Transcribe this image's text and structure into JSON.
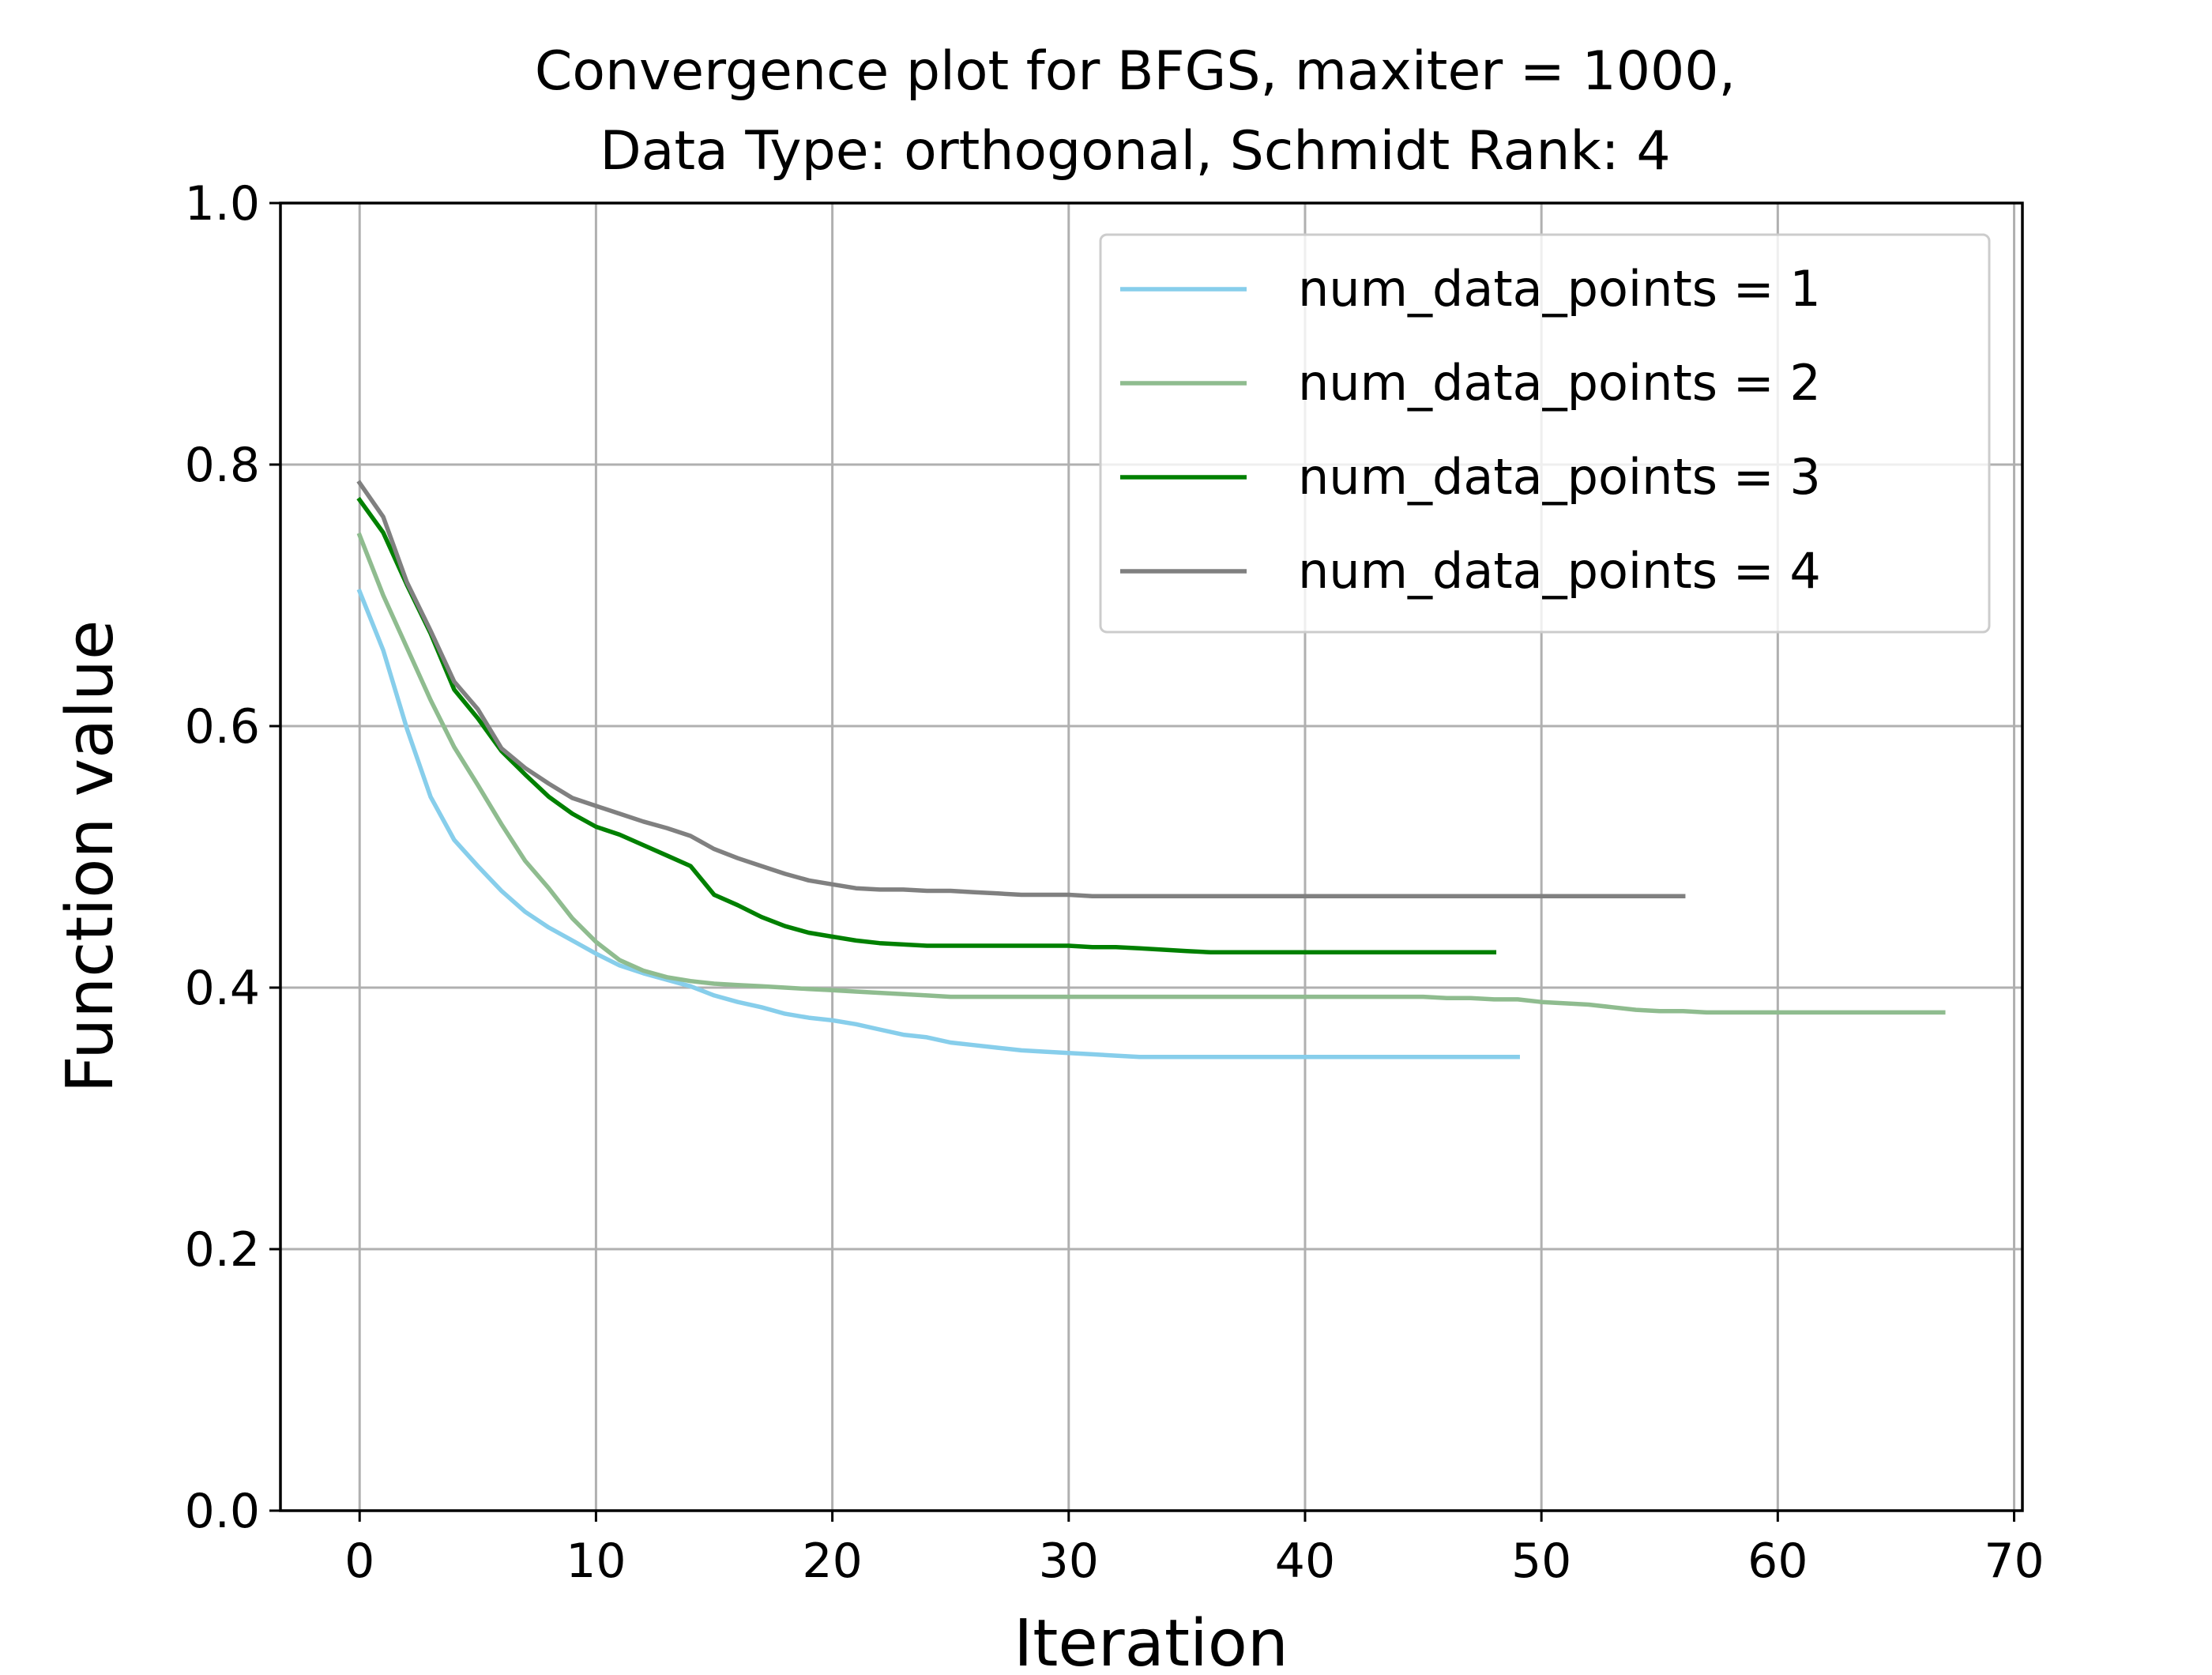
{
  "chart_data": {
    "type": "line",
    "title": [
      "Convergence plot for BFGS, maxiter = 1000,",
      "Data Type: orthogonal, Schmidt Rank: 4"
    ],
    "xlabel": "Iteration",
    "ylabel": "Function value",
    "xlim": [
      -3.35,
      70.35
    ],
    "ylim": [
      0.0,
      1.0
    ],
    "xticks": [
      0,
      10,
      20,
      30,
      40,
      50,
      60,
      70
    ],
    "yticks": [
      0.0,
      0.2,
      0.4,
      0.6,
      0.8,
      1.0
    ],
    "xtick_labels": [
      "0",
      "10",
      "20",
      "30",
      "40",
      "50",
      "60",
      "70"
    ],
    "ytick_labels": [
      "0.0",
      "0.2",
      "0.4",
      "0.6",
      "0.8",
      "1.0"
    ],
    "grid": true,
    "legend_position": "top-right",
    "series": [
      {
        "name": "num_data_points = 1",
        "color": "#87CEEB",
        "x": [
          0,
          1,
          2,
          3,
          4,
          5,
          6,
          7,
          8,
          9,
          10,
          11,
          12,
          13,
          14,
          15,
          16,
          17,
          18,
          19,
          20,
          21,
          22,
          23,
          24,
          25,
          26,
          27,
          28,
          29,
          30,
          31,
          32,
          33,
          34,
          35,
          36,
          37,
          38,
          39,
          40,
          41,
          42,
          43,
          44,
          45,
          46,
          47,
          48,
          49
        ],
        "values": [
          0.703,
          0.658,
          0.598,
          0.546,
          0.513,
          0.493,
          0.474,
          0.458,
          0.446,
          0.436,
          0.426,
          0.417,
          0.411,
          0.406,
          0.401,
          0.394,
          0.389,
          0.385,
          0.38,
          0.377,
          0.375,
          0.372,
          0.368,
          0.364,
          0.362,
          0.358,
          0.356,
          0.354,
          0.352,
          0.351,
          0.35,
          0.349,
          0.348,
          0.347,
          0.347,
          0.347,
          0.347,
          0.347,
          0.347,
          0.347,
          0.347,
          0.347,
          0.347,
          0.347,
          0.347,
          0.347,
          0.347,
          0.347,
          0.347,
          0.347
        ]
      },
      {
        "name": "num_data_points = 2",
        "color": "#8FBC8F",
        "x": [
          0,
          1,
          2,
          3,
          4,
          5,
          6,
          7,
          8,
          9,
          10,
          11,
          12,
          13,
          14,
          15,
          16,
          17,
          18,
          19,
          20,
          21,
          22,
          23,
          24,
          25,
          26,
          27,
          28,
          29,
          30,
          31,
          32,
          33,
          34,
          35,
          36,
          37,
          38,
          39,
          40,
          41,
          42,
          43,
          44,
          45,
          46,
          47,
          48,
          49,
          50,
          51,
          52,
          53,
          54,
          55,
          56,
          57,
          58,
          59,
          60,
          61,
          62,
          63,
          64,
          65,
          66,
          67
        ],
        "values": [
          0.746,
          0.7,
          0.66,
          0.62,
          0.584,
          0.555,
          0.525,
          0.497,
          0.476,
          0.453,
          0.435,
          0.421,
          0.413,
          0.408,
          0.405,
          0.403,
          0.402,
          0.401,
          0.4,
          0.399,
          0.398,
          0.397,
          0.396,
          0.395,
          0.394,
          0.393,
          0.393,
          0.393,
          0.393,
          0.393,
          0.393,
          0.393,
          0.393,
          0.393,
          0.393,
          0.393,
          0.393,
          0.393,
          0.393,
          0.393,
          0.393,
          0.393,
          0.393,
          0.393,
          0.393,
          0.393,
          0.392,
          0.392,
          0.391,
          0.391,
          0.389,
          0.388,
          0.387,
          0.385,
          0.383,
          0.382,
          0.382,
          0.381,
          0.381,
          0.381,
          0.381,
          0.381,
          0.381,
          0.381,
          0.381,
          0.381,
          0.381,
          0.381
        ]
      },
      {
        "name": "num_data_points = 3",
        "color": "#008000",
        "x": [
          0,
          1,
          2,
          3,
          4,
          5,
          6,
          7,
          8,
          9,
          10,
          11,
          12,
          13,
          14,
          15,
          16,
          17,
          18,
          19,
          20,
          21,
          22,
          23,
          24,
          25,
          26,
          27,
          28,
          29,
          30,
          31,
          32,
          33,
          34,
          35,
          36,
          37,
          38,
          39,
          40,
          41,
          42,
          43,
          44,
          45,
          46,
          47,
          48
        ],
        "values": [
          0.773,
          0.748,
          0.708,
          0.671,
          0.628,
          0.606,
          0.581,
          0.563,
          0.546,
          0.533,
          0.523,
          0.517,
          0.509,
          0.501,
          0.493,
          0.471,
          0.463,
          0.454,
          0.447,
          0.442,
          0.439,
          0.436,
          0.434,
          0.433,
          0.432,
          0.432,
          0.432,
          0.432,
          0.432,
          0.432,
          0.432,
          0.431,
          0.431,
          0.43,
          0.429,
          0.428,
          0.427,
          0.427,
          0.427,
          0.427,
          0.427,
          0.427,
          0.427,
          0.427,
          0.427,
          0.427,
          0.427,
          0.427,
          0.427
        ]
      },
      {
        "name": "num_data_points = 4",
        "color": "#808080",
        "x": [
          0,
          1,
          2,
          3,
          4,
          5,
          6,
          7,
          8,
          9,
          10,
          11,
          12,
          13,
          14,
          15,
          16,
          17,
          18,
          19,
          20,
          21,
          22,
          23,
          24,
          25,
          26,
          27,
          28,
          29,
          30,
          31,
          32,
          33,
          34,
          35,
          36,
          37,
          38,
          39,
          40,
          41,
          42,
          43,
          44,
          45,
          46,
          47,
          48,
          49,
          50,
          51,
          52,
          53,
          54,
          55,
          56
        ],
        "values": [
          0.786,
          0.76,
          0.71,
          0.673,
          0.634,
          0.613,
          0.583,
          0.568,
          0.556,
          0.545,
          0.539,
          0.533,
          0.527,
          0.522,
          0.516,
          0.506,
          0.499,
          0.493,
          0.487,
          0.482,
          0.479,
          0.476,
          0.475,
          0.475,
          0.474,
          0.474,
          0.473,
          0.472,
          0.471,
          0.471,
          0.471,
          0.47,
          0.47,
          0.47,
          0.47,
          0.47,
          0.47,
          0.47,
          0.47,
          0.47,
          0.47,
          0.47,
          0.47,
          0.47,
          0.47,
          0.47,
          0.47,
          0.47,
          0.47,
          0.47,
          0.47,
          0.47,
          0.47,
          0.47,
          0.47,
          0.47,
          0.47
        ]
      }
    ]
  }
}
